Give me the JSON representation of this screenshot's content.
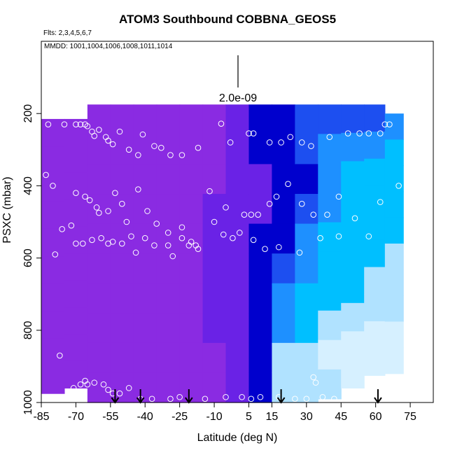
{
  "chart_data": {
    "type": "heatmap",
    "title": "ATOM3 Southbound COBBNA_GEOS5",
    "flights_note": "Flts: 2,3,4,5,6,7",
    "dates_note": "MMDD: 1001,1004,1006,1008,1011,1014",
    "xlabel": "Latitude (deg N)",
    "ylabel": "PSXC (mbar)",
    "xlim": [
      -85,
      85
    ],
    "ylim": [
      1000,
      0
    ],
    "x_ticks": [
      -85,
      -70,
      -55,
      -40,
      -25,
      -10,
      5,
      15,
      30,
      45,
      60,
      75
    ],
    "y_ticks": [
      200,
      400,
      600,
      800,
      1000
    ],
    "scale_bar_label": "2.0e-09",
    "colors": {
      "purple": "#8a2be2",
      "blue_violet": "#6a22e6",
      "dark_blue": "#0000cd",
      "blue": "#1d4ff0",
      "dodger_blue": "#1e90ff",
      "deep_sky_blue": "#00bfff",
      "light_blue": "#b0e2ff",
      "pale_blue": "#d6f0ff"
    },
    "columns": [
      {
        "lat": -80,
        "p_top": 215,
        "p_bottom": 975,
        "colors": [
          "purple",
          "purple",
          "purple",
          "purple",
          "purple",
          "purple",
          "purple",
          "purple",
          "purple",
          "purple"
        ]
      },
      {
        "lat": -70,
        "p_top": 215,
        "p_bottom": 960,
        "colors": [
          "purple",
          "purple",
          "purple",
          "purple",
          "purple",
          "purple",
          "purple",
          "purple",
          "purple",
          "purple"
        ]
      },
      {
        "lat": -60,
        "p_top": 175,
        "p_bottom": 1000,
        "colors": [
          "purple",
          "purple",
          "purple",
          "purple",
          "purple",
          "purple",
          "purple",
          "purple",
          "purple",
          "purple"
        ]
      },
      {
        "lat": -50,
        "p_top": 175,
        "p_bottom": 1000,
        "colors": [
          "purple",
          "purple",
          "purple",
          "purple",
          "purple",
          "purple",
          "purple",
          "purple",
          "purple",
          "purple"
        ]
      },
      {
        "lat": -40,
        "p_top": 175,
        "p_bottom": 1000,
        "colors": [
          "purple",
          "purple",
          "purple",
          "purple",
          "purple",
          "purple",
          "purple",
          "purple",
          "purple",
          "purple"
        ]
      },
      {
        "lat": -30,
        "p_top": 175,
        "p_bottom": 1000,
        "colors": [
          "purple",
          "purple",
          "purple",
          "purple",
          "purple",
          "purple",
          "purple",
          "purple",
          "purple",
          "purple"
        ]
      },
      {
        "lat": -20,
        "p_top": 175,
        "p_bottom": 1000,
        "colors": [
          "purple",
          "purple",
          "purple",
          "purple",
          "purple",
          "purple",
          "purple",
          "purple",
          "purple",
          "purple"
        ]
      },
      {
        "lat": -10,
        "p_top": 175,
        "p_bottom": 1000,
        "colors": [
          "purple",
          "purple",
          "purple",
          "blue_violet",
          "blue_violet",
          "blue_violet",
          "blue_violet",
          "blue_violet",
          "purple",
          "purple"
        ]
      },
      {
        "lat": 0,
        "p_top": 175,
        "p_bottom": 1000,
        "colors": [
          "blue_violet",
          "blue_violet",
          "blue_violet",
          "blue_violet",
          "blue_violet",
          "blue_violet",
          "blue_violet",
          "blue_violet",
          "blue_violet",
          "blue_violet"
        ]
      },
      {
        "lat": 10,
        "p_top": 175,
        "p_bottom": 1000,
        "colors": [
          "dark_blue",
          "dark_blue",
          "blue_violet",
          "blue_violet",
          "dark_blue",
          "dark_blue",
          "dark_blue",
          "dark_blue",
          "dark_blue",
          "dark_blue"
        ]
      },
      {
        "lat": 20,
        "p_top": 175,
        "p_bottom": 1000,
        "colors": [
          "dark_blue",
          "dark_blue",
          "dark_blue",
          "dark_blue",
          "dark_blue",
          "blue",
          "dodger_blue",
          "dodger_blue",
          "light_blue",
          "light_blue"
        ]
      },
      {
        "lat": 30,
        "p_top": 175,
        "p_bottom": 1000,
        "colors": [
          "blue",
          "blue",
          "dark_blue",
          "blue",
          "dodger_blue",
          "dodger_blue",
          "deep_sky_blue",
          "deep_sky_blue",
          "light_blue",
          "light_blue"
        ]
      },
      {
        "lat": 40,
        "p_top": 175,
        "p_bottom": 990,
        "colors": [
          "blue",
          "dodger_blue",
          "dodger_blue",
          "dodger_blue",
          "deep_sky_blue",
          "deep_sky_blue",
          "deep_sky_blue",
          "light_blue",
          "pale_blue",
          "light_blue"
        ]
      },
      {
        "lat": 50,
        "p_top": 175,
        "p_bottom": 960,
        "colors": [
          "blue",
          "dodger_blue",
          "deep_sky_blue",
          "deep_sky_blue",
          "deep_sky_blue",
          "deep_sky_blue",
          "deep_sky_blue",
          "light_blue",
          "pale_blue",
          "pale_blue"
        ]
      },
      {
        "lat": 60,
        "p_top": 175,
        "p_bottom": 925,
        "colors": [
          "blue",
          "dodger_blue",
          "deep_sky_blue",
          "deep_sky_blue",
          "deep_sky_blue",
          "deep_sky_blue",
          "light_blue",
          "light_blue",
          "pale_blue",
          "pale_blue"
        ]
      },
      {
        "lat": 68,
        "p_top": 200,
        "p_bottom": 920,
        "colors": [
          "dodger_blue",
          "deep_sky_blue",
          "deep_sky_blue",
          "deep_sky_blue",
          "deep_sky_blue",
          "light_blue",
          "light_blue",
          "light_blue",
          "pale_blue",
          "pale_blue"
        ]
      }
    ],
    "flight_markers_lat": [
      -53,
      -42,
      -21,
      19,
      61
    ],
    "points": [
      [
        -82,
        230
      ],
      [
        -75,
        230
      ],
      [
        -70,
        230
      ],
      [
        -68,
        230
      ],
      [
        -66,
        230
      ],
      [
        -65,
        235
      ],
      [
        -63,
        250
      ],
      [
        -62,
        262
      ],
      [
        -60,
        245
      ],
      [
        -57,
        265
      ],
      [
        -56,
        275
      ],
      [
        -54,
        285
      ],
      [
        -51,
        250
      ],
      [
        -47,
        300
      ],
      [
        -43,
        315
      ],
      [
        -41,
        258
      ],
      [
        -36,
        290
      ],
      [
        -33,
        295
      ],
      [
        -29,
        315
      ],
      [
        -24,
        315
      ],
      [
        -17,
        295
      ],
      [
        -7,
        228
      ],
      [
        -3,
        280
      ],
      [
        5,
        255
      ],
      [
        7,
        255
      ],
      [
        14,
        280
      ],
      [
        19,
        280
      ],
      [
        23,
        265
      ],
      [
        28,
        280
      ],
      [
        32,
        290
      ],
      [
        40,
        265
      ],
      [
        48,
        255
      ],
      [
        53,
        255
      ],
      [
        57,
        255
      ],
      [
        62,
        255
      ],
      [
        64,
        230
      ],
      [
        66,
        230
      ],
      [
        70,
        400
      ],
      [
        -83,
        370
      ],
      [
        -80,
        400
      ],
      [
        -70,
        420
      ],
      [
        -66,
        430
      ],
      [
        -64,
        440
      ],
      [
        -61,
        460
      ],
      [
        -60,
        475
      ],
      [
        -56,
        470
      ],
      [
        -53,
        420
      ],
      [
        -50,
        450
      ],
      [
        -48,
        500
      ],
      [
        -43,
        410
      ],
      [
        -39,
        470
      ],
      [
        -35,
        505
      ],
      [
        -30,
        565
      ],
      [
        -24,
        515
      ],
      [
        -20,
        555
      ],
      [
        -17,
        575
      ],
      [
        -12,
        415
      ],
      [
        -5,
        460
      ],
      [
        -2,
        545
      ],
      [
        3,
        480
      ],
      [
        6,
        480
      ],
      [
        9,
        480
      ],
      [
        14,
        450
      ],
      [
        17,
        430
      ],
      [
        22,
        395
      ],
      [
        28,
        450
      ],
      [
        33,
        480
      ],
      [
        39,
        480
      ],
      [
        44,
        430
      ],
      [
        51,
        490
      ],
      [
        57,
        540
      ],
      [
        62,
        445
      ],
      [
        -79,
        590
      ],
      [
        -76,
        520
      ],
      [
        -72,
        510
      ],
      [
        -70,
        560
      ],
      [
        -67,
        560
      ],
      [
        -63,
        550
      ],
      [
        -59,
        545
      ],
      [
        -56,
        560
      ],
      [
        -54,
        555
      ],
      [
        -50,
        560
      ],
      [
        -46,
        540
      ],
      [
        -44,
        585
      ],
      [
        -40,
        545
      ],
      [
        -36,
        565
      ],
      [
        -30,
        530
      ],
      [
        -28,
        595
      ],
      [
        -24,
        545
      ],
      [
        -21,
        565
      ],
      [
        -18,
        565
      ],
      [
        -10,
        500
      ],
      [
        -6,
        535
      ],
      [
        1,
        530
      ],
      [
        7,
        550
      ],
      [
        12,
        575
      ],
      [
        18,
        570
      ],
      [
        27,
        585
      ],
      [
        36,
        545
      ],
      [
        44,
        540
      ],
      [
        -77,
        870
      ],
      [
        -71,
        960
      ],
      [
        -68,
        950
      ],
      [
        -66,
        940
      ],
      [
        -65,
        950
      ],
      [
        -62,
        945
      ],
      [
        -58,
        950
      ],
      [
        -56,
        965
      ],
      [
        -54,
        975
      ],
      [
        -51,
        975
      ],
      [
        -47,
        960
      ],
      [
        -42,
        990
      ],
      [
        -37,
        990
      ],
      [
        -29,
        990
      ],
      [
        -25,
        985
      ],
      [
        -14,
        990
      ],
      [
        -5,
        985
      ],
      [
        2,
        985
      ],
      [
        6,
        990
      ],
      [
        10,
        985
      ],
      [
        18,
        985
      ],
      [
        25,
        990
      ],
      [
        30,
        990
      ],
      [
        33,
        930
      ],
      [
        34,
        945
      ],
      [
        37,
        985
      ],
      [
        42,
        990
      ]
    ]
  }
}
